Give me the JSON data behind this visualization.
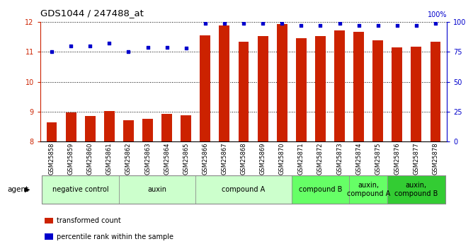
{
  "title": "GDS1044 / 247488_at",
  "samples": [
    "GSM25858",
    "GSM25859",
    "GSM25860",
    "GSM25861",
    "GSM25862",
    "GSM25863",
    "GSM25864",
    "GSM25865",
    "GSM25866",
    "GSM25867",
    "GSM25868",
    "GSM25869",
    "GSM25870",
    "GSM25871",
    "GSM25872",
    "GSM25873",
    "GSM25874",
    "GSM25875",
    "GSM25876",
    "GSM25877",
    "GSM25878"
  ],
  "transformed_count": [
    8.65,
    8.98,
    8.85,
    9.03,
    8.72,
    8.77,
    8.93,
    8.88,
    11.55,
    11.88,
    11.35,
    11.52,
    11.92,
    11.45,
    11.52,
    11.72,
    11.68,
    11.38,
    11.15,
    11.18,
    11.35
  ],
  "percentile_rank": [
    75,
    80,
    80,
    82,
    75,
    79,
    79,
    78,
    99,
    99,
    99,
    99,
    99,
    97,
    97,
    99,
    97,
    97,
    97,
    97,
    99
  ],
  "ylim_left": [
    8,
    12
  ],
  "ylim_right": [
    0,
    100
  ],
  "yticks_left": [
    8,
    9,
    10,
    11,
    12
  ],
  "yticks_right": [
    0,
    25,
    50,
    75,
    100
  ],
  "bar_color": "#cc2200",
  "dot_color": "#0000cc",
  "grid_color": "#000000",
  "agent_groups": [
    {
      "label": "negative control",
      "start": 0,
      "end": 3,
      "color": "#ccffcc"
    },
    {
      "label": "auxin",
      "start": 4,
      "end": 7,
      "color": "#ccffcc"
    },
    {
      "label": "compound A",
      "start": 8,
      "end": 12,
      "color": "#ccffcc"
    },
    {
      "label": "compound B",
      "start": 13,
      "end": 15,
      "color": "#66ff66"
    },
    {
      "label": "auxin,\ncompound A",
      "start": 16,
      "end": 17,
      "color": "#66ff66"
    },
    {
      "label": "auxin,\ncompound B",
      "start": 18,
      "end": 20,
      "color": "#33cc33"
    }
  ],
  "legend_items": [
    {
      "label": "transformed count",
      "color": "#cc2200",
      "marker": "s"
    },
    {
      "label": "percentile rank within the sample",
      "color": "#0000cc",
      "marker": "s"
    }
  ]
}
